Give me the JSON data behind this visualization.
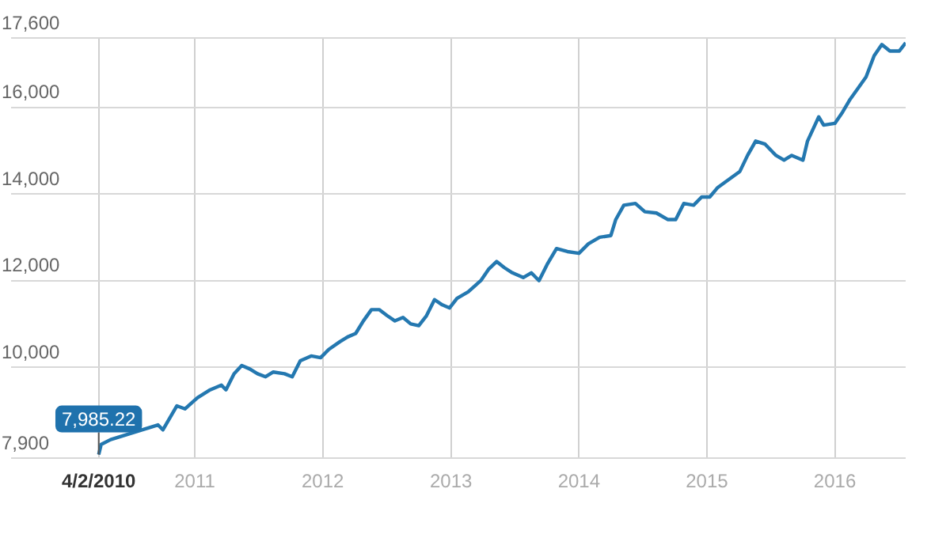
{
  "chart_data": {
    "type": "line",
    "x": [
      "2010-04-02",
      "2010-04-09",
      "2010-05-06",
      "2010-08-18",
      "2010-09-18",
      "2010-10-02",
      "2010-11-11",
      "2010-12-04",
      "2011-01-09",
      "2011-02-14",
      "2011-03-18",
      "2011-03-31",
      "2011-04-23",
      "2011-05-15",
      "2011-06-07",
      "2011-06-29",
      "2011-07-22",
      "2011-08-13",
      "2011-09-14",
      "2011-10-06",
      "2011-10-29",
      "2011-11-29",
      "2011-12-26",
      "2012-01-18",
      "2012-02-19",
      "2012-03-12",
      "2012-04-04",
      "2012-04-26",
      "2012-05-19",
      "2012-06-10",
      "2012-07-03",
      "2012-07-25",
      "2012-08-17",
      "2012-09-08",
      "2012-10-01",
      "2012-10-23",
      "2012-11-15",
      "2012-12-07",
      "2012-12-28",
      "2013-01-18",
      "2013-02-19",
      "2013-03-27",
      "2013-04-18",
      "2013-05-11",
      "2013-06-02",
      "2013-06-25",
      "2013-07-26",
      "2013-08-18",
      "2013-09-09",
      "2013-10-02",
      "2013-10-29",
      "2013-11-29",
      "2014-01-01",
      "2014-01-28",
      "2014-03-01",
      "2014-04-02",
      "2014-04-16",
      "2014-05-09",
      "2014-06-11",
      "2014-07-08",
      "2014-08-10",
      "2014-09-11",
      "2014-10-04",
      "2014-10-27",
      "2014-11-24",
      "2014-12-17",
      "2015-01-09",
      "2015-02-01",
      "2015-03-04",
      "2015-04-05",
      "2015-04-27",
      "2015-05-20",
      "2015-06-16",
      "2015-07-17",
      "2015-08-09",
      "2015-08-31",
      "2015-10-02",
      "2015-10-15",
      "2015-11-16",
      "2015-11-30",
      "2016-01-01",
      "2016-01-23",
      "2016-02-14",
      "2016-03-08",
      "2016-03-30",
      "2016-04-22",
      "2016-05-14",
      "2016-06-06",
      "2016-07-03",
      "2016-07-21"
    ],
    "series": [
      {
        "color": "#2478b0",
        "values": [
          7985.22,
          8220,
          8330,
          8590,
          8670,
          8555,
          9110,
          9040,
          9300,
          9480,
          9590,
          9480,
          9850,
          10040,
          9960,
          9850,
          9780,
          9890,
          9850,
          9780,
          10150,
          10260,
          10220,
          10410,
          10590,
          10700,
          10780,
          11070,
          11330,
          11330,
          11190,
          11070,
          11150,
          11000,
          10960,
          11190,
          11560,
          11440,
          11370,
          11590,
          11740,
          12000,
          12260,
          12440,
          12300,
          12180,
          12070,
          12180,
          12000,
          12370,
          12740,
          12670,
          12630,
          12850,
          13000,
          13040,
          13410,
          13740,
          13780,
          13590,
          13560,
          13410,
          13410,
          13780,
          13740,
          13930,
          13930,
          14150,
          14330,
          14520,
          14890,
          15220,
          15150,
          14890,
          14780,
          14890,
          14780,
          15220,
          15780,
          15590,
          15630,
          15890,
          16190,
          16450,
          16700,
          17190,
          17450,
          17300,
          17300,
          17490
        ]
      }
    ],
    "xlim": [
      "2009-07-26",
      "2016-07-21"
    ],
    "xticks": [
      {
        "value": "2010-04-02",
        "label": "4/2/2010"
      },
      {
        "value": "2011-01-01",
        "label": "2011"
      },
      {
        "value": "2012-01-01",
        "label": "2012"
      },
      {
        "value": "2013-01-01",
        "label": "2013"
      },
      {
        "value": "2014-01-01",
        "label": "2014"
      },
      {
        "value": "2015-01-01",
        "label": "2015"
      },
      {
        "value": "2016-01-01",
        "label": "2016"
      }
    ],
    "ylim": [
      7900,
      17600
    ],
    "yticks": [
      {
        "value": 7900,
        "label": "7,900"
      },
      {
        "value": 10000,
        "label": "10,000"
      },
      {
        "value": 12000,
        "label": "12,000"
      },
      {
        "value": 14000,
        "label": "14,000"
      },
      {
        "value": 16000,
        "label": "16,000"
      },
      {
        "value": 17600,
        "label": "17,600"
      }
    ],
    "grid": true,
    "legend": false,
    "annotations": [
      {
        "text": "7,985.22",
        "x": "2010-04-02",
        "y": 7985.22
      }
    ]
  }
}
